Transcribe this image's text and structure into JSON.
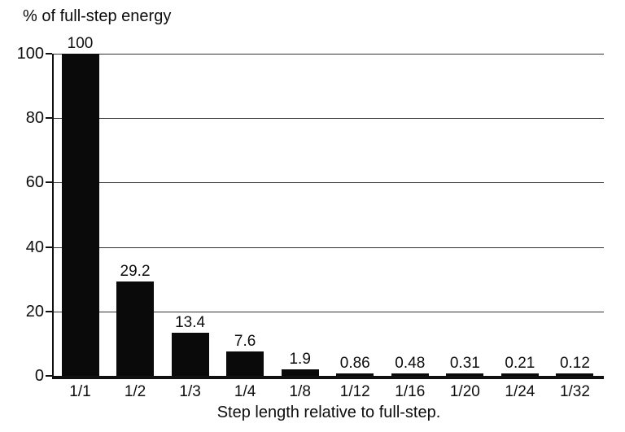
{
  "chart_data": {
    "type": "bar",
    "title": "% of full-step energy",
    "xlabel": "Step length relative to full-step.",
    "ylabel": "% of full-step energy",
    "categories": [
      "1/1",
      "1/2",
      "1/3",
      "1/4",
      "1/8",
      "1/12",
      "1/16",
      "1/20",
      "1/24",
      "1/32"
    ],
    "values": [
      100,
      29.2,
      13.4,
      7.6,
      1.9,
      0.86,
      0.48,
      0.31,
      0.21,
      0.12
    ],
    "value_labels": [
      "100",
      "29.2",
      "13.4",
      "7.6",
      "1.9",
      "0.86",
      "0.48",
      "0.31",
      "0.21",
      "0.12"
    ],
    "yticks": [
      0,
      20,
      40,
      60,
      80,
      100
    ],
    "ylim": [
      0,
      100
    ],
    "grid": true,
    "legend": "none",
    "bar_color": "#0a0a0a",
    "grid_color": "#333333",
    "axis_color": "#111111",
    "background_color": "#ffffff"
  }
}
